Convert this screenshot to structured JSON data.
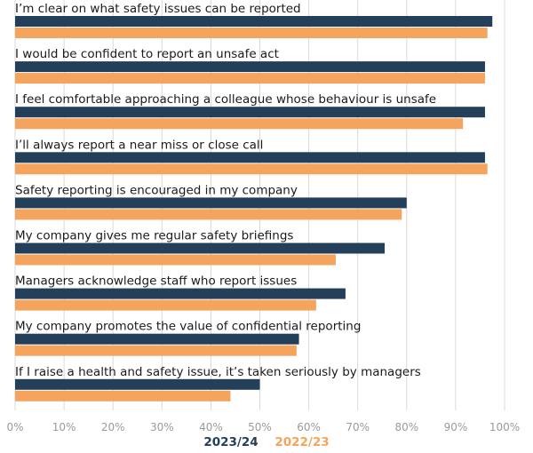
{
  "chart_data": {
    "type": "bar",
    "orientation": "horizontal",
    "categories": [
      "I’m clear on what safety issues can be reported",
      "I would be confident to report an unsafe act",
      "I feel comfortable approaching a colleague whose behaviour is unsafe",
      "I’ll always report a near miss or close call",
      "Safety reporting is encouraged in my company",
      "My company gives me regular safety briefings",
      "Managers acknowledge staff who report issues",
      "My company promotes the value of confidential reporting",
      "If I raise a health and safety issue, it’s taken seriously by managers"
    ],
    "series": [
      {
        "name": "2023/24",
        "color": "#243f5a",
        "values": [
          97.5,
          96,
          96,
          96,
          80,
          75.5,
          67.5,
          58,
          50
        ]
      },
      {
        "name": "2022/23",
        "color": "#f4a45c",
        "values": [
          96.5,
          96,
          91.5,
          96.5,
          79,
          65.5,
          61.5,
          57.5,
          44
        ]
      }
    ],
    "xlim": [
      0,
      100
    ],
    "xticks": [
      "0%",
      "10%",
      "20%",
      "30%",
      "40%",
      "50%",
      "60%",
      "70%",
      "80%",
      "90%",
      "100%"
    ],
    "grid": true,
    "legend_position": "bottom"
  }
}
